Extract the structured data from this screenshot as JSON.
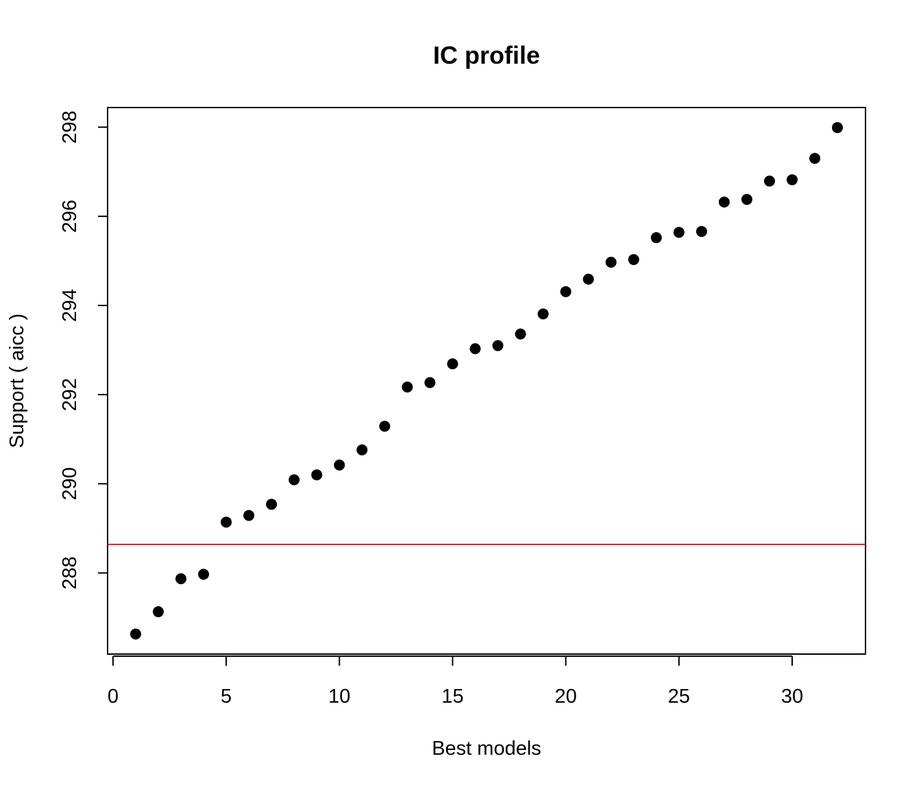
{
  "chart_data": {
    "type": "scatter",
    "title": "IC profile",
    "xlabel": "Best models",
    "ylabel": "Support ( aicc )",
    "x": [
      1,
      2,
      3,
      4,
      5,
      6,
      7,
      8,
      9,
      10,
      11,
      12,
      13,
      14,
      15,
      16,
      17,
      18,
      19,
      20,
      21,
      22,
      23,
      24,
      25,
      26,
      27,
      28,
      29,
      30,
      31,
      32
    ],
    "y": [
      286.63,
      287.13,
      287.87,
      287.97,
      289.14,
      289.29,
      289.54,
      290.09,
      290.2,
      290.42,
      290.76,
      291.29,
      292.17,
      292.27,
      292.69,
      293.03,
      293.1,
      293.36,
      293.81,
      294.31,
      294.59,
      294.97,
      295.03,
      295.52,
      295.64,
      295.66,
      296.32,
      296.38,
      296.79,
      296.82,
      297.3,
      297.99
    ],
    "xticks": [
      0,
      5,
      10,
      15,
      20,
      25,
      30
    ],
    "yticks": [
      288,
      290,
      292,
      294,
      296,
      298
    ],
    "xlim": [
      -0.24,
      33.24
    ],
    "ylim": [
      286.18,
      298.44
    ],
    "reference_line": {
      "y": 288.64,
      "color": "#e31a1c"
    },
    "point_color": "#000000",
    "grid": false,
    "legend": "none"
  }
}
